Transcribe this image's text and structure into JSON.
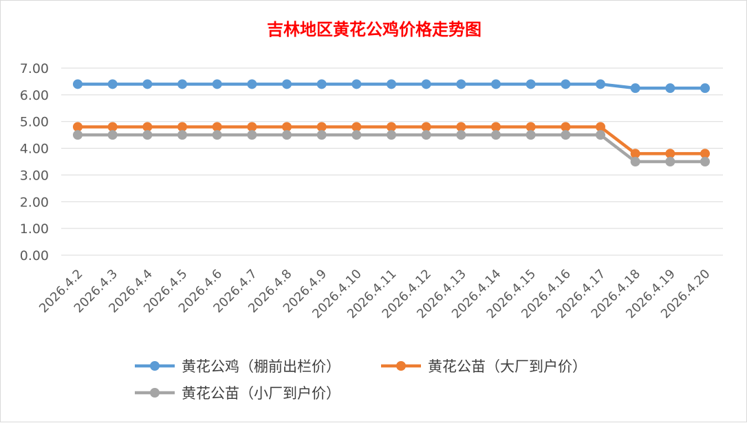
{
  "chart_data": {
    "type": "line",
    "title": "吉林地区黄花公鸡价格走势图",
    "xlabel": "",
    "ylabel": "",
    "categories": [
      "2026.4.2",
      "2026.4.3",
      "2026.4.4",
      "2026.4.5",
      "2026.4.6",
      "2026.4.7",
      "2026.4.8",
      "2026.4.9",
      "2026.4.10",
      "2026.4.11",
      "2026.4.12",
      "2026.4.13",
      "2026.4.14",
      "2026.4.15",
      "2026.4.16",
      "2026.4.17",
      "2026.4.18",
      "2026.4.19",
      "2026.4.20"
    ],
    "ylim": [
      0,
      7
    ],
    "yticks": [
      "0.00",
      "1.00",
      "2.00",
      "3.00",
      "4.00",
      "5.00",
      "6.00",
      "7.00"
    ],
    "grid": true,
    "legend_position": "bottom",
    "series": [
      {
        "name": "黄花公鸡（棚前出栏价）",
        "color": "#5b9bd5",
        "values": [
          6.4,
          6.4,
          6.4,
          6.4,
          6.4,
          6.4,
          6.4,
          6.4,
          6.4,
          6.4,
          6.4,
          6.4,
          6.4,
          6.4,
          6.4,
          6.4,
          6.25,
          6.25,
          6.25
        ]
      },
      {
        "name": "黄花公苗（大厂到户价）",
        "color": "#ed7d31",
        "values": [
          4.8,
          4.8,
          4.8,
          4.8,
          4.8,
          4.8,
          4.8,
          4.8,
          4.8,
          4.8,
          4.8,
          4.8,
          4.8,
          4.8,
          4.8,
          4.8,
          3.8,
          3.8,
          3.8
        ]
      },
      {
        "name": "黄花公苗（小厂到户价）",
        "color": "#a5a5a5",
        "values": [
          4.5,
          4.5,
          4.5,
          4.5,
          4.5,
          4.5,
          4.5,
          4.5,
          4.5,
          4.5,
          4.5,
          4.5,
          4.5,
          4.5,
          4.5,
          4.5,
          3.5,
          3.5,
          3.5
        ]
      }
    ]
  }
}
